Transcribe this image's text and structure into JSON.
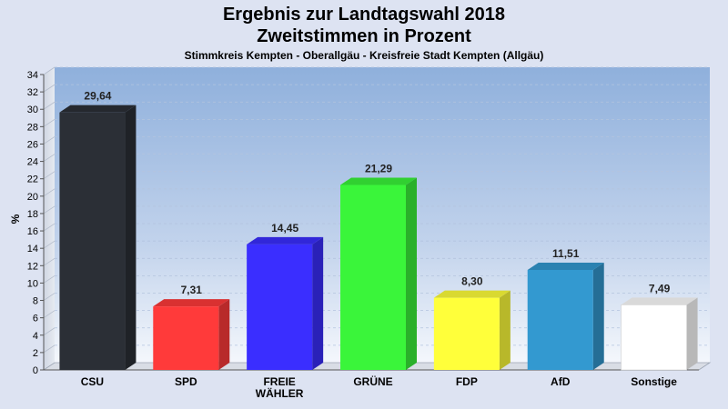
{
  "header": {
    "title_line1": "Ergebnis zur Landtagswahl 2018",
    "title_line2": "Zweitstimmen in Prozent",
    "subtitle": "Stimmkreis Kempten - Oberallgäu - Kreisfreie Stadt Kempten (Allgäu)"
  },
  "chart_data": {
    "type": "bar",
    "ylabel": "%",
    "xlabel": "",
    "ylim": [
      0,
      34
    ],
    "yticks": [
      0,
      2,
      4,
      6,
      8,
      10,
      12,
      14,
      16,
      18,
      20,
      22,
      24,
      26,
      28,
      30,
      32,
      34
    ],
    "grid": true,
    "categories": [
      "CSU",
      "SPD",
      "FREIE WÄHLER",
      "GRÜNE",
      "FDP",
      "AfD",
      "Sonstige"
    ],
    "category_lines": [
      [
        "CSU"
      ],
      [
        "SPD"
      ],
      [
        "FREIE",
        "WÄHLER"
      ],
      [
        "GRÜNE"
      ],
      [
        "FDP"
      ],
      [
        "AfD"
      ],
      [
        "Sonstige"
      ]
    ],
    "values": [
      29.64,
      7.31,
      14.45,
      21.29,
      8.3,
      11.51,
      7.49
    ],
    "value_labels": [
      "29,64",
      "7,31",
      "14,45",
      "21,29",
      "8,30",
      "11,51",
      "7,49"
    ],
    "colors": [
      "#2b2f36",
      "#ff3a3a",
      "#3a2eff",
      "#3af53a",
      "#ffff3a",
      "#3399d0",
      "#ffffff"
    ]
  }
}
